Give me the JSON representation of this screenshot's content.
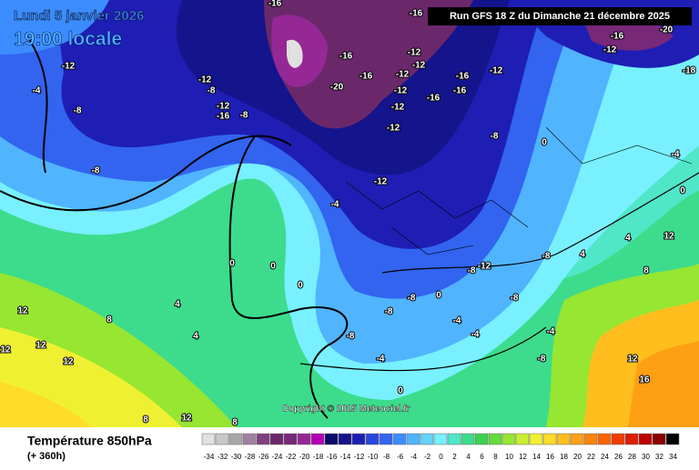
{
  "header": {
    "date": "Lundi 5 janvier 2026",
    "time": "19:00 locale",
    "run": "Run GFS 18 Z du Dimanche 21 décembre 2025"
  },
  "copyright": "Copyright © 2025 Meteociel.fr",
  "footer": {
    "title": "Température 850hPa",
    "lead": "(+ 360h)"
  },
  "legend": {
    "values": [
      -34,
      -32,
      -30,
      -28,
      -26,
      -24,
      -22,
      -20,
      -18,
      -16,
      -14,
      -12,
      -10,
      -8,
      -6,
      -4,
      -2,
      0,
      2,
      4,
      6,
      8,
      10,
      12,
      14,
      16,
      18,
      20,
      22,
      24,
      26,
      28,
      30,
      32,
      34
    ],
    "colors": [
      "#e0e0e0",
      "#c8c8c8",
      "#a8a8a8",
      "#a080a0",
      "#804080",
      "#6a286a",
      "#782878",
      "#962896",
      "#b400b4",
      "#0a0a6a",
      "#14148c",
      "#1e1eb4",
      "#2846dc",
      "#3264f0",
      "#3c8cff",
      "#50b4ff",
      "#64d2ff",
      "#78f0ff",
      "#50e6c8",
      "#3cdc8c",
      "#3cd250",
      "#64dc3c",
      "#96e632",
      "#c8f032",
      "#f0f032",
      "#ffdc28",
      "#ffbe1e",
      "#ffa014",
      "#ff820a",
      "#ff6400",
      "#f03c00",
      "#dc1e00",
      "#be0000",
      "#8c0000",
      "#000000"
    ]
  },
  "contour_labels": [
    -12,
    -4,
    -8,
    -8,
    -12,
    -8,
    -12,
    -16,
    -8,
    -16,
    -20,
    -16,
    -12,
    -12,
    -12,
    -12,
    -16,
    -16,
    -16,
    -12,
    -12,
    -12,
    -12,
    -8,
    -4,
    -8,
    -12,
    -8,
    -8,
    -8,
    -4,
    -4,
    -8,
    -4,
    -4,
    0,
    0,
    0,
    0,
    0,
    4,
    4,
    8,
    12,
    12,
    12,
    12,
    12,
    8,
    8,
    -4,
    -8,
    0,
    0,
    4,
    4,
    8,
    12,
    12,
    16,
    -16,
    -12,
    -20,
    -18,
    -16,
    -16,
    -8
  ]
}
